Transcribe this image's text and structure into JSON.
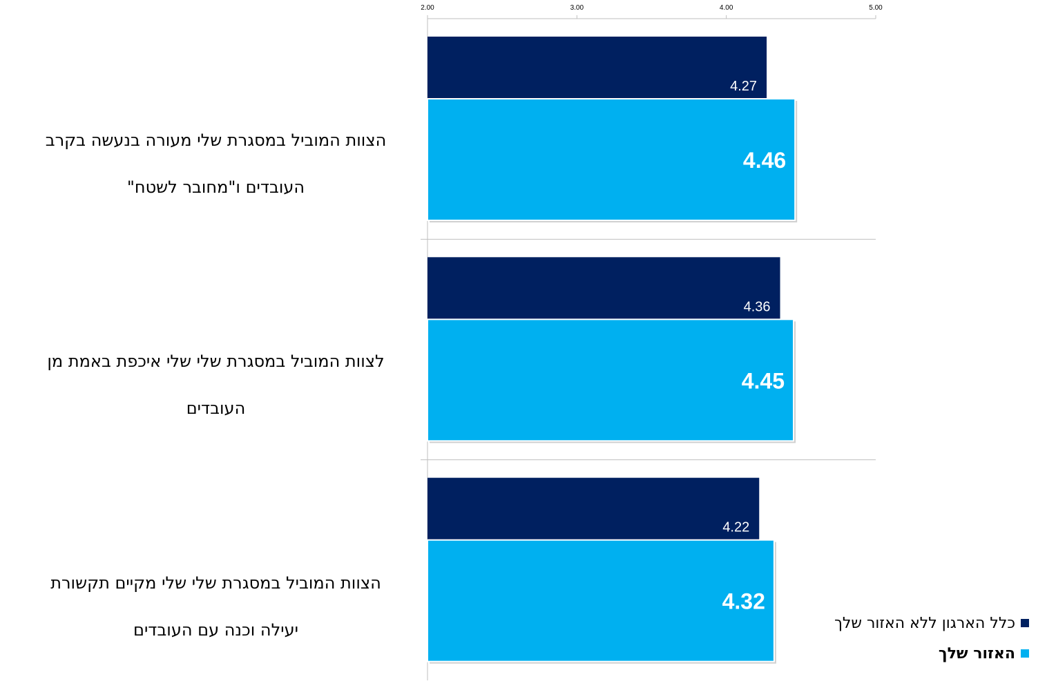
{
  "chart_data": {
    "type": "bar",
    "orientation": "horizontal",
    "categories": [
      "הצוות המוביל במסגרת שלי מעורה בנעשה בקרב העובדים ו\"מחובר  לשטח\"",
      "לצוות המוביל במסגרת שלי שלי איכפת באמת מן העובדים",
      "הצוות המוביל במסגרת שלי שלי מקיים תקשורת יעילה וכנה עם העובדים"
    ],
    "category_lines": [
      [
        "הצוות המוביל במסגרת שלי מעורה בנעשה בקרב",
        "העובדים ו\"מחובר  לשטח\""
      ],
      [
        "לצוות המוביל במסגרת שלי שלי איכפת באמת מן",
        "העובדים"
      ],
      [
        "הצוות המוביל במסגרת שלי שלי מקיים תקשורת",
        "יעילה וכנה עם העובדים"
      ]
    ],
    "series": [
      {
        "name": "כלל הארגון ללא האזור שלך",
        "values": [
          4.27,
          4.36,
          4.22
        ],
        "labels": [
          "4.27",
          "4.36",
          "4.22"
        ],
        "color": "#002060"
      },
      {
        "name": "האזור שלך",
        "values": [
          4.46,
          4.45,
          4.32
        ],
        "labels": [
          "4.46",
          "4.45",
          "4.32"
        ],
        "color": "#00B0F0"
      }
    ],
    "xlim": [
      2,
      5
    ],
    "ticks": [
      2,
      3,
      4,
      5
    ],
    "tick_labels": [
      "2.00",
      "3.00",
      "4.00",
      "5.00"
    ],
    "axis_position": "top",
    "grid": false,
    "legend_position": "bottom-right"
  },
  "colors": {
    "series_dark": "#002060",
    "series_light": "#00B0F0",
    "axis": "#bfbfbf"
  }
}
